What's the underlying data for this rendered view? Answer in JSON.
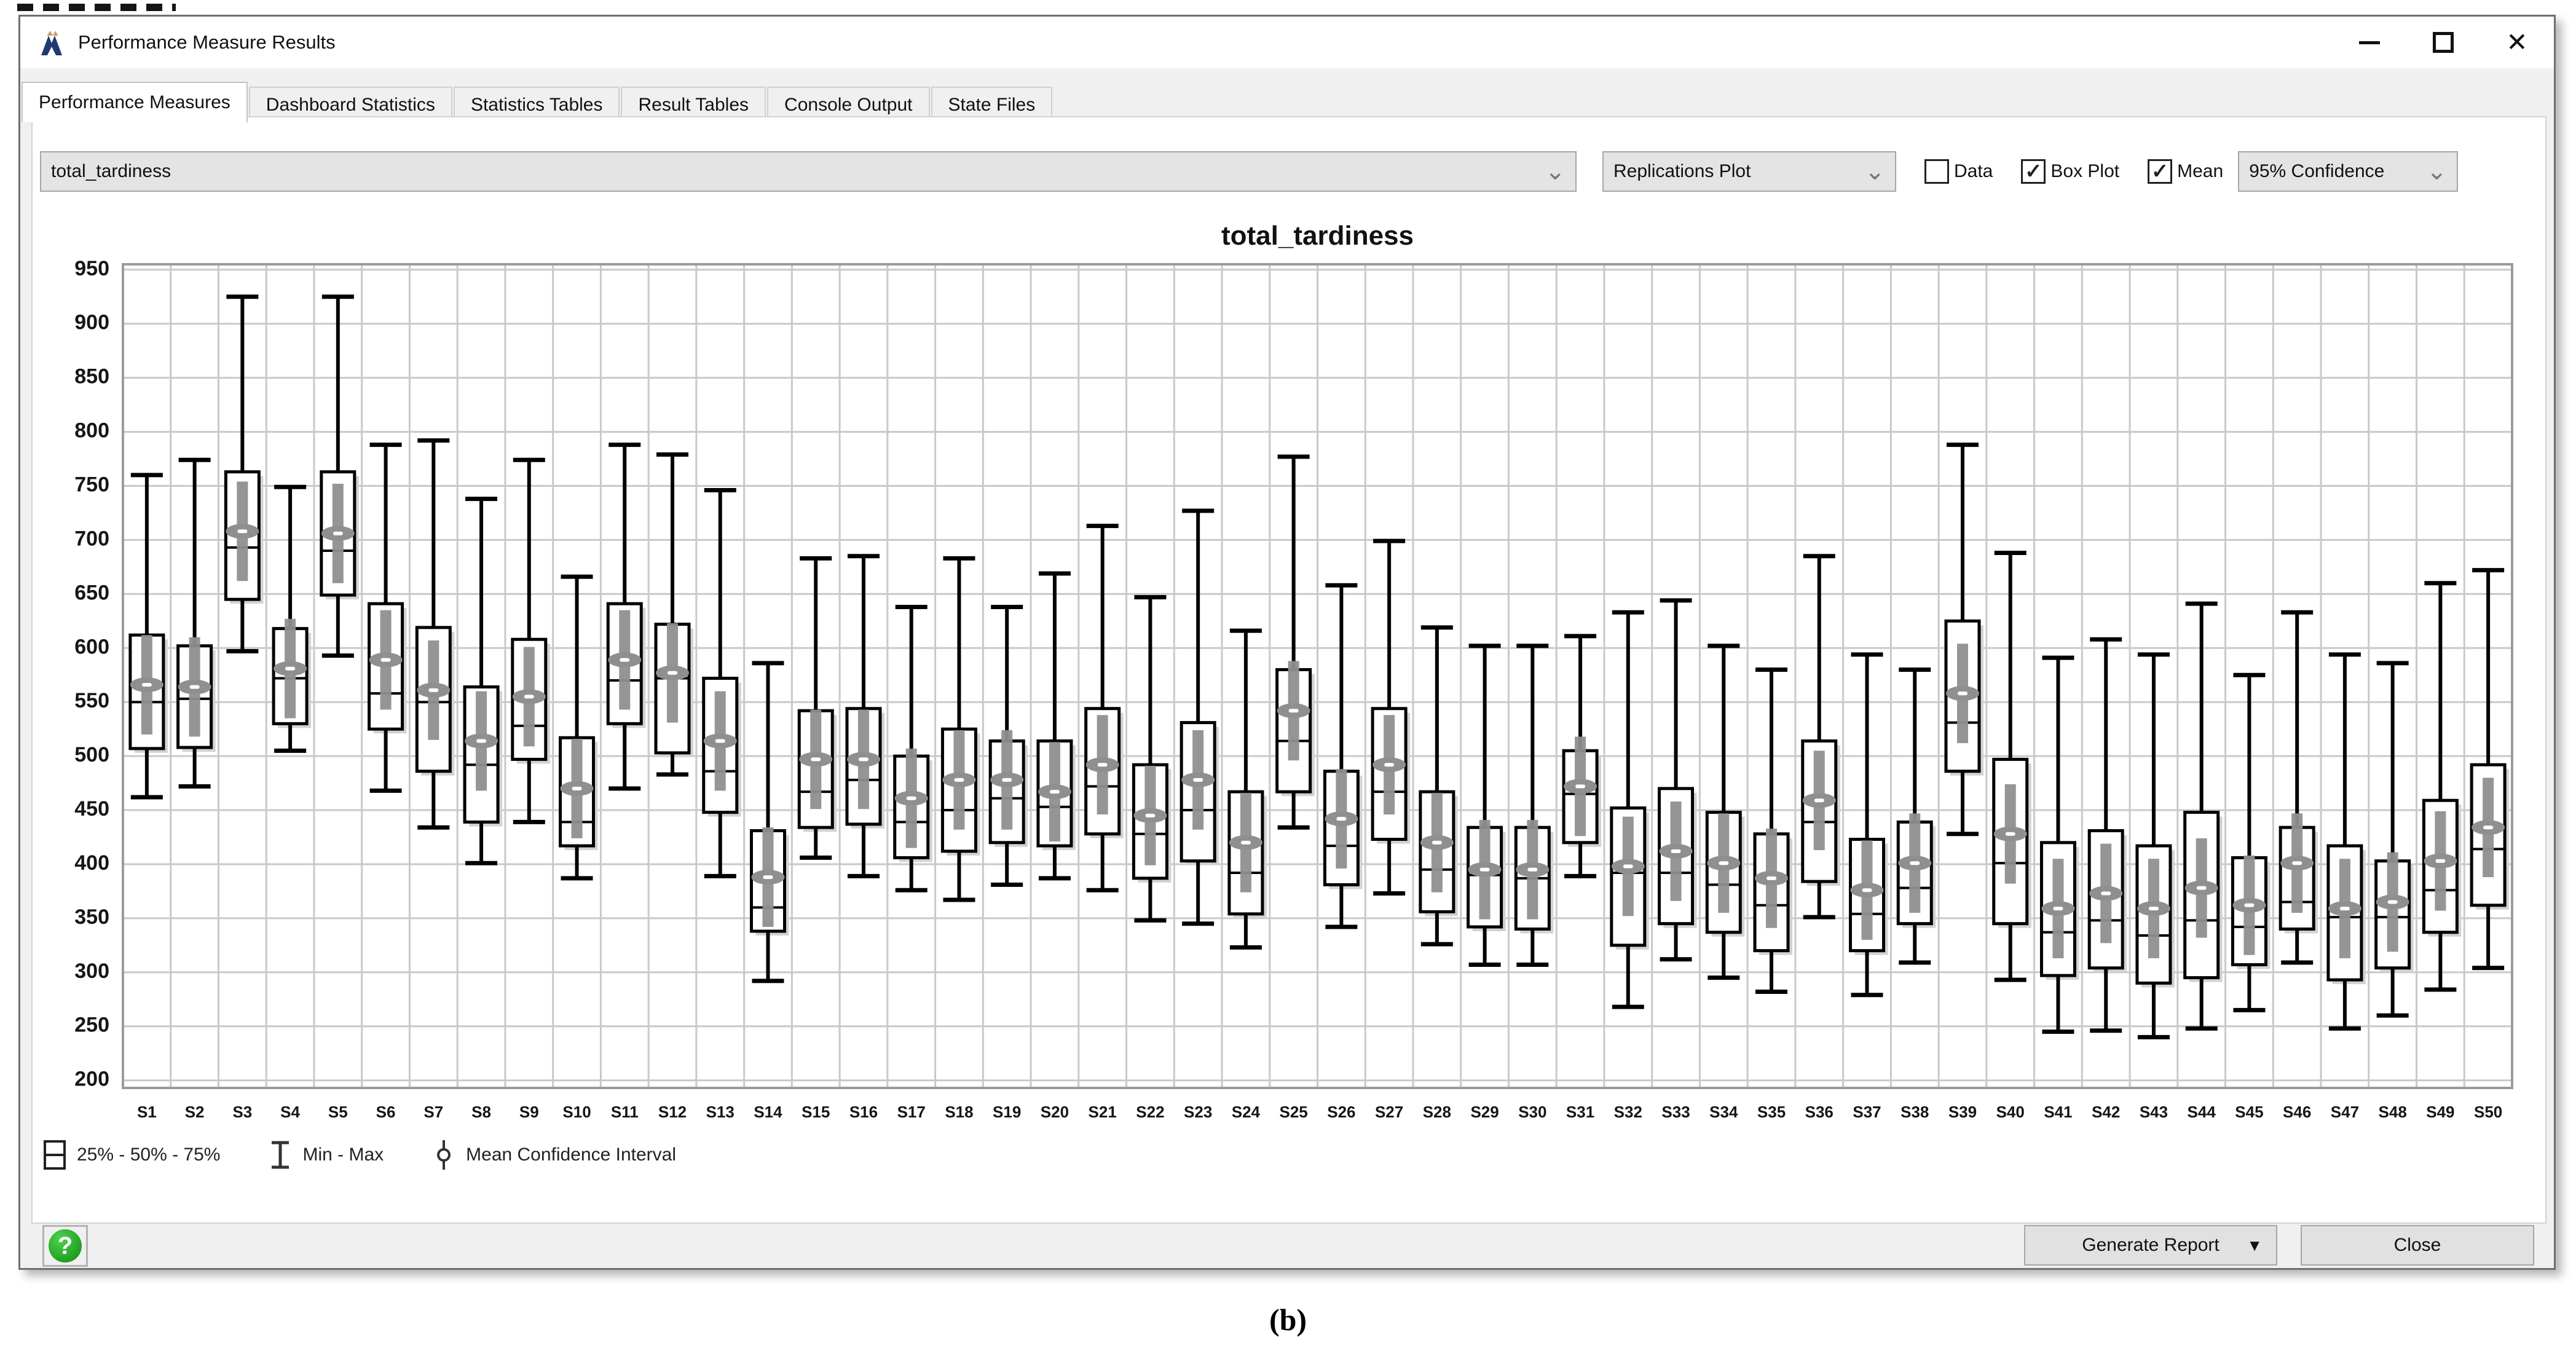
{
  "window": {
    "title": "Performance Measure Results"
  },
  "icons": {
    "chevron_down": "⌄",
    "dropdown_arrow": "▼",
    "close_window": "✕",
    "help": "?"
  },
  "tabs": [
    {
      "label": "Performance Measures",
      "active": true
    },
    {
      "label": "Dashboard Statistics",
      "active": false
    },
    {
      "label": "Statistics Tables",
      "active": false
    },
    {
      "label": "Result Tables",
      "active": false
    },
    {
      "label": "Console Output",
      "active": false
    },
    {
      "label": "State Files",
      "active": false
    }
  ],
  "toolbar": {
    "measure_select": {
      "value": "total_tardiness"
    },
    "plot_type_select": {
      "value": "Replications Plot"
    },
    "checkboxes": [
      {
        "label": "Data",
        "checked": false
      },
      {
        "label": "Box Plot",
        "checked": true
      },
      {
        "label": "Mean",
        "checked": true
      }
    ],
    "confidence_select": {
      "value": "95% Confidence"
    }
  },
  "legend": {
    "box": "25% - 50% - 75%",
    "minmax": "Min - Max",
    "mean_ci": "Mean Confidence Interval"
  },
  "footer": {
    "generate_report": "Generate Report",
    "close": "Close"
  },
  "caption": "(b)",
  "colors": {
    "box_stroke": "#000000",
    "mean_ci": "#8f8f8f",
    "grid": "#c9c9c9",
    "plot_border": "#9b9b9b",
    "shadow": "#d2d2d2",
    "help_green": "#128a12"
  },
  "chart_data": {
    "type": "boxplot",
    "title": "total_tardiness",
    "ylabel": "",
    "xlabel": "",
    "grid": true,
    "ylim": [
      193,
      955
    ],
    "yticks": [
      200,
      250,
      300,
      350,
      400,
      450,
      500,
      550,
      600,
      650,
      700,
      750,
      800,
      850,
      900,
      950
    ],
    "ci_halfwidth": 46,
    "categories": [
      "S1",
      "S2",
      "S3",
      "S4",
      "S5",
      "S6",
      "S7",
      "S8",
      "S9",
      "S10",
      "S11",
      "S12",
      "S13",
      "S14",
      "S15",
      "S16",
      "S17",
      "S18",
      "S19",
      "S20",
      "S21",
      "S22",
      "S23",
      "S24",
      "S25",
      "S26",
      "S27",
      "S28",
      "S29",
      "S30",
      "S31",
      "S32",
      "S33",
      "S34",
      "S35",
      "S36",
      "S37",
      "S38",
      "S39",
      "S40",
      "S41",
      "S42",
      "S43",
      "S44",
      "S45",
      "S46",
      "S47",
      "S48",
      "S49",
      "S50"
    ],
    "series": [
      {
        "label": "S1",
        "min": 462,
        "q1": 507,
        "median": 550,
        "q3": 612,
        "max": 760,
        "mean": 566
      },
      {
        "label": "S2",
        "min": 472,
        "q1": 508,
        "median": 553,
        "q3": 602,
        "max": 774,
        "mean": 564
      },
      {
        "label": "S3",
        "min": 597,
        "q1": 645,
        "median": 693,
        "q3": 763,
        "max": 925,
        "mean": 708
      },
      {
        "label": "S4",
        "min": 505,
        "q1": 530,
        "median": 572,
        "q3": 618,
        "max": 749,
        "mean": 581
      },
      {
        "label": "S5",
        "min": 593,
        "q1": 649,
        "median": 690,
        "q3": 763,
        "max": 925,
        "mean": 706
      },
      {
        "label": "S6",
        "min": 468,
        "q1": 525,
        "median": 558,
        "q3": 641,
        "max": 788,
        "mean": 589
      },
      {
        "label": "S7",
        "min": 434,
        "q1": 486,
        "median": 550,
        "q3": 619,
        "max": 792,
        "mean": 561
      },
      {
        "label": "S8",
        "min": 401,
        "q1": 439,
        "median": 492,
        "q3": 564,
        "max": 738,
        "mean": 514
      },
      {
        "label": "S9",
        "min": 439,
        "q1": 497,
        "median": 528,
        "q3": 608,
        "max": 774,
        "mean": 555
      },
      {
        "label": "S10",
        "min": 387,
        "q1": 417,
        "median": 439,
        "q3": 517,
        "max": 666,
        "mean": 470
      },
      {
        "label": "S11",
        "min": 470,
        "q1": 530,
        "median": 570,
        "q3": 641,
        "max": 788,
        "mean": 589
      },
      {
        "label": "S12",
        "min": 483,
        "q1": 503,
        "median": 572,
        "q3": 622,
        "max": 779,
        "mean": 577
      },
      {
        "label": "S13",
        "min": 389,
        "q1": 448,
        "median": 486,
        "q3": 572,
        "max": 746,
        "mean": 514
      },
      {
        "label": "S14",
        "min": 292,
        "q1": 338,
        "median": 360,
        "q3": 431,
        "max": 586,
        "mean": 388
      },
      {
        "label": "S15",
        "min": 406,
        "q1": 434,
        "median": 467,
        "q3": 542,
        "max": 683,
        "mean": 497
      },
      {
        "label": "S16",
        "min": 389,
        "q1": 437,
        "median": 478,
        "q3": 544,
        "max": 685,
        "mean": 497
      },
      {
        "label": "S17",
        "min": 376,
        "q1": 406,
        "median": 439,
        "q3": 500,
        "max": 638,
        "mean": 461
      },
      {
        "label": "S18",
        "min": 367,
        "q1": 412,
        "median": 450,
        "q3": 525,
        "max": 683,
        "mean": 478
      },
      {
        "label": "S19",
        "min": 381,
        "q1": 420,
        "median": 461,
        "q3": 514,
        "max": 638,
        "mean": 478
      },
      {
        "label": "S20",
        "min": 387,
        "q1": 417,
        "median": 453,
        "q3": 514,
        "max": 669,
        "mean": 467
      },
      {
        "label": "S21",
        "min": 376,
        "q1": 428,
        "median": 472,
        "q3": 544,
        "max": 713,
        "mean": 492
      },
      {
        "label": "S22",
        "min": 348,
        "q1": 387,
        "median": 428,
        "q3": 492,
        "max": 647,
        "mean": 445
      },
      {
        "label": "S23",
        "min": 345,
        "q1": 403,
        "median": 450,
        "q3": 531,
        "max": 727,
        "mean": 478
      },
      {
        "label": "S24",
        "min": 323,
        "q1": 354,
        "median": 392,
        "q3": 467,
        "max": 616,
        "mean": 420
      },
      {
        "label": "S25",
        "min": 434,
        "q1": 467,
        "median": 514,
        "q3": 580,
        "max": 777,
        "mean": 542
      },
      {
        "label": "S26",
        "min": 342,
        "q1": 381,
        "median": 417,
        "q3": 486,
        "max": 658,
        "mean": 442
      },
      {
        "label": "S27",
        "min": 373,
        "q1": 423,
        "median": 467,
        "q3": 544,
        "max": 699,
        "mean": 492
      },
      {
        "label": "S28",
        "min": 326,
        "q1": 356,
        "median": 395,
        "q3": 467,
        "max": 619,
        "mean": 420
      },
      {
        "label": "S29",
        "min": 307,
        "q1": 342,
        "median": 390,
        "q3": 434,
        "max": 602,
        "mean": 395
      },
      {
        "label": "S30",
        "min": 307,
        "q1": 340,
        "median": 387,
        "q3": 434,
        "max": 602,
        "mean": 395
      },
      {
        "label": "S31",
        "min": 389,
        "q1": 420,
        "median": 465,
        "q3": 505,
        "max": 611,
        "mean": 472
      },
      {
        "label": "S32",
        "min": 268,
        "q1": 325,
        "median": 392,
        "q3": 452,
        "max": 633,
        "mean": 398
      },
      {
        "label": "S33",
        "min": 312,
        "q1": 345,
        "median": 392,
        "q3": 470,
        "max": 644,
        "mean": 412
      },
      {
        "label": "S34",
        "min": 295,
        "q1": 337,
        "median": 381,
        "q3": 448,
        "max": 602,
        "mean": 401
      },
      {
        "label": "S35",
        "min": 282,
        "q1": 320,
        "median": 362,
        "q3": 428,
        "max": 580,
        "mean": 387
      },
      {
        "label": "S36",
        "min": 351,
        "q1": 384,
        "median": 439,
        "q3": 514,
        "max": 685,
        "mean": 459
      },
      {
        "label": "S37",
        "min": 279,
        "q1": 320,
        "median": 354,
        "q3": 423,
        "max": 594,
        "mean": 376
      },
      {
        "label": "S38",
        "min": 309,
        "q1": 345,
        "median": 378,
        "q3": 439,
        "max": 580,
        "mean": 401
      },
      {
        "label": "S39",
        "min": 428,
        "q1": 486,
        "median": 531,
        "q3": 625,
        "max": 788,
        "mean": 558
      },
      {
        "label": "S40",
        "min": 293,
        "q1": 345,
        "median": 401,
        "q3": 497,
        "max": 688,
        "mean": 428
      },
      {
        "label": "S41",
        "min": 245,
        "q1": 297,
        "median": 337,
        "q3": 420,
        "max": 591,
        "mean": 359
      },
      {
        "label": "S42",
        "min": 246,
        "q1": 304,
        "median": 348,
        "q3": 431,
        "max": 608,
        "mean": 373
      },
      {
        "label": "S43",
        "min": 240,
        "q1": 290,
        "median": 334,
        "q3": 417,
        "max": 594,
        "mean": 359
      },
      {
        "label": "S44",
        "min": 248,
        "q1": 295,
        "median": 348,
        "q3": 448,
        "max": 641,
        "mean": 378
      },
      {
        "label": "S45",
        "min": 265,
        "q1": 307,
        "median": 342,
        "q3": 406,
        "max": 575,
        "mean": 362
      },
      {
        "label": "S46",
        "min": 309,
        "q1": 340,
        "median": 365,
        "q3": 434,
        "max": 633,
        "mean": 401
      },
      {
        "label": "S47",
        "min": 248,
        "q1": 293,
        "median": 351,
        "q3": 417,
        "max": 594,
        "mean": 359
      },
      {
        "label": "S48",
        "min": 260,
        "q1": 304,
        "median": 351,
        "q3": 403,
        "max": 586,
        "mean": 365
      },
      {
        "label": "S49",
        "min": 284,
        "q1": 337,
        "median": 376,
        "q3": 459,
        "max": 660,
        "mean": 403
      },
      {
        "label": "S50",
        "min": 304,
        "q1": 362,
        "median": 414,
        "q3": 492,
        "max": 672,
        "mean": 434
      }
    ]
  }
}
